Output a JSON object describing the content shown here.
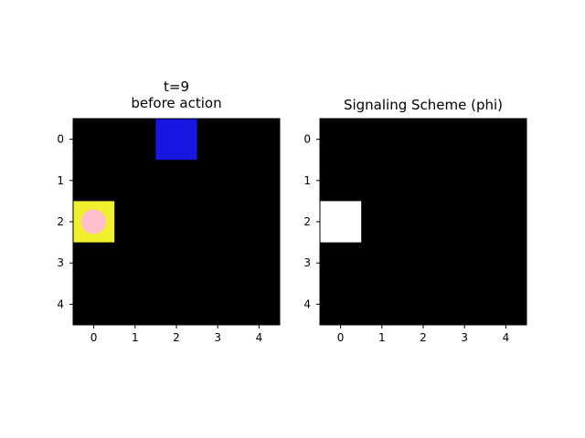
{
  "left_panel": {
    "title_line1": "t=9",
    "title_line2": "before action",
    "grid_size": 5,
    "background_color": "#000000",
    "x_ticks": [
      "0",
      "1",
      "2",
      "3",
      "4"
    ],
    "y_ticks": [
      "0",
      "1",
      "2",
      "3",
      "4"
    ],
    "cells": [
      {
        "row": 0,
        "col": 2,
        "color": "#1616e0",
        "kind": "blue-block"
      },
      {
        "row": 2,
        "col": 0,
        "color": "#f0f02c",
        "kind": "yellow-goal"
      }
    ],
    "agent": {
      "row": 2,
      "col": 0,
      "color": "#ffc0cb",
      "icon": "pink-circle-icon"
    }
  },
  "right_panel": {
    "title": "Signaling Scheme (phi)",
    "grid_size": 5,
    "background_color": "#000000",
    "x_ticks": [
      "0",
      "1",
      "2",
      "3",
      "4"
    ],
    "y_ticks": [
      "0",
      "1",
      "2",
      "3",
      "4"
    ],
    "cells": [
      {
        "row": 2,
        "col": 0,
        "color": "#ffffff",
        "kind": "signal-cell"
      }
    ]
  }
}
